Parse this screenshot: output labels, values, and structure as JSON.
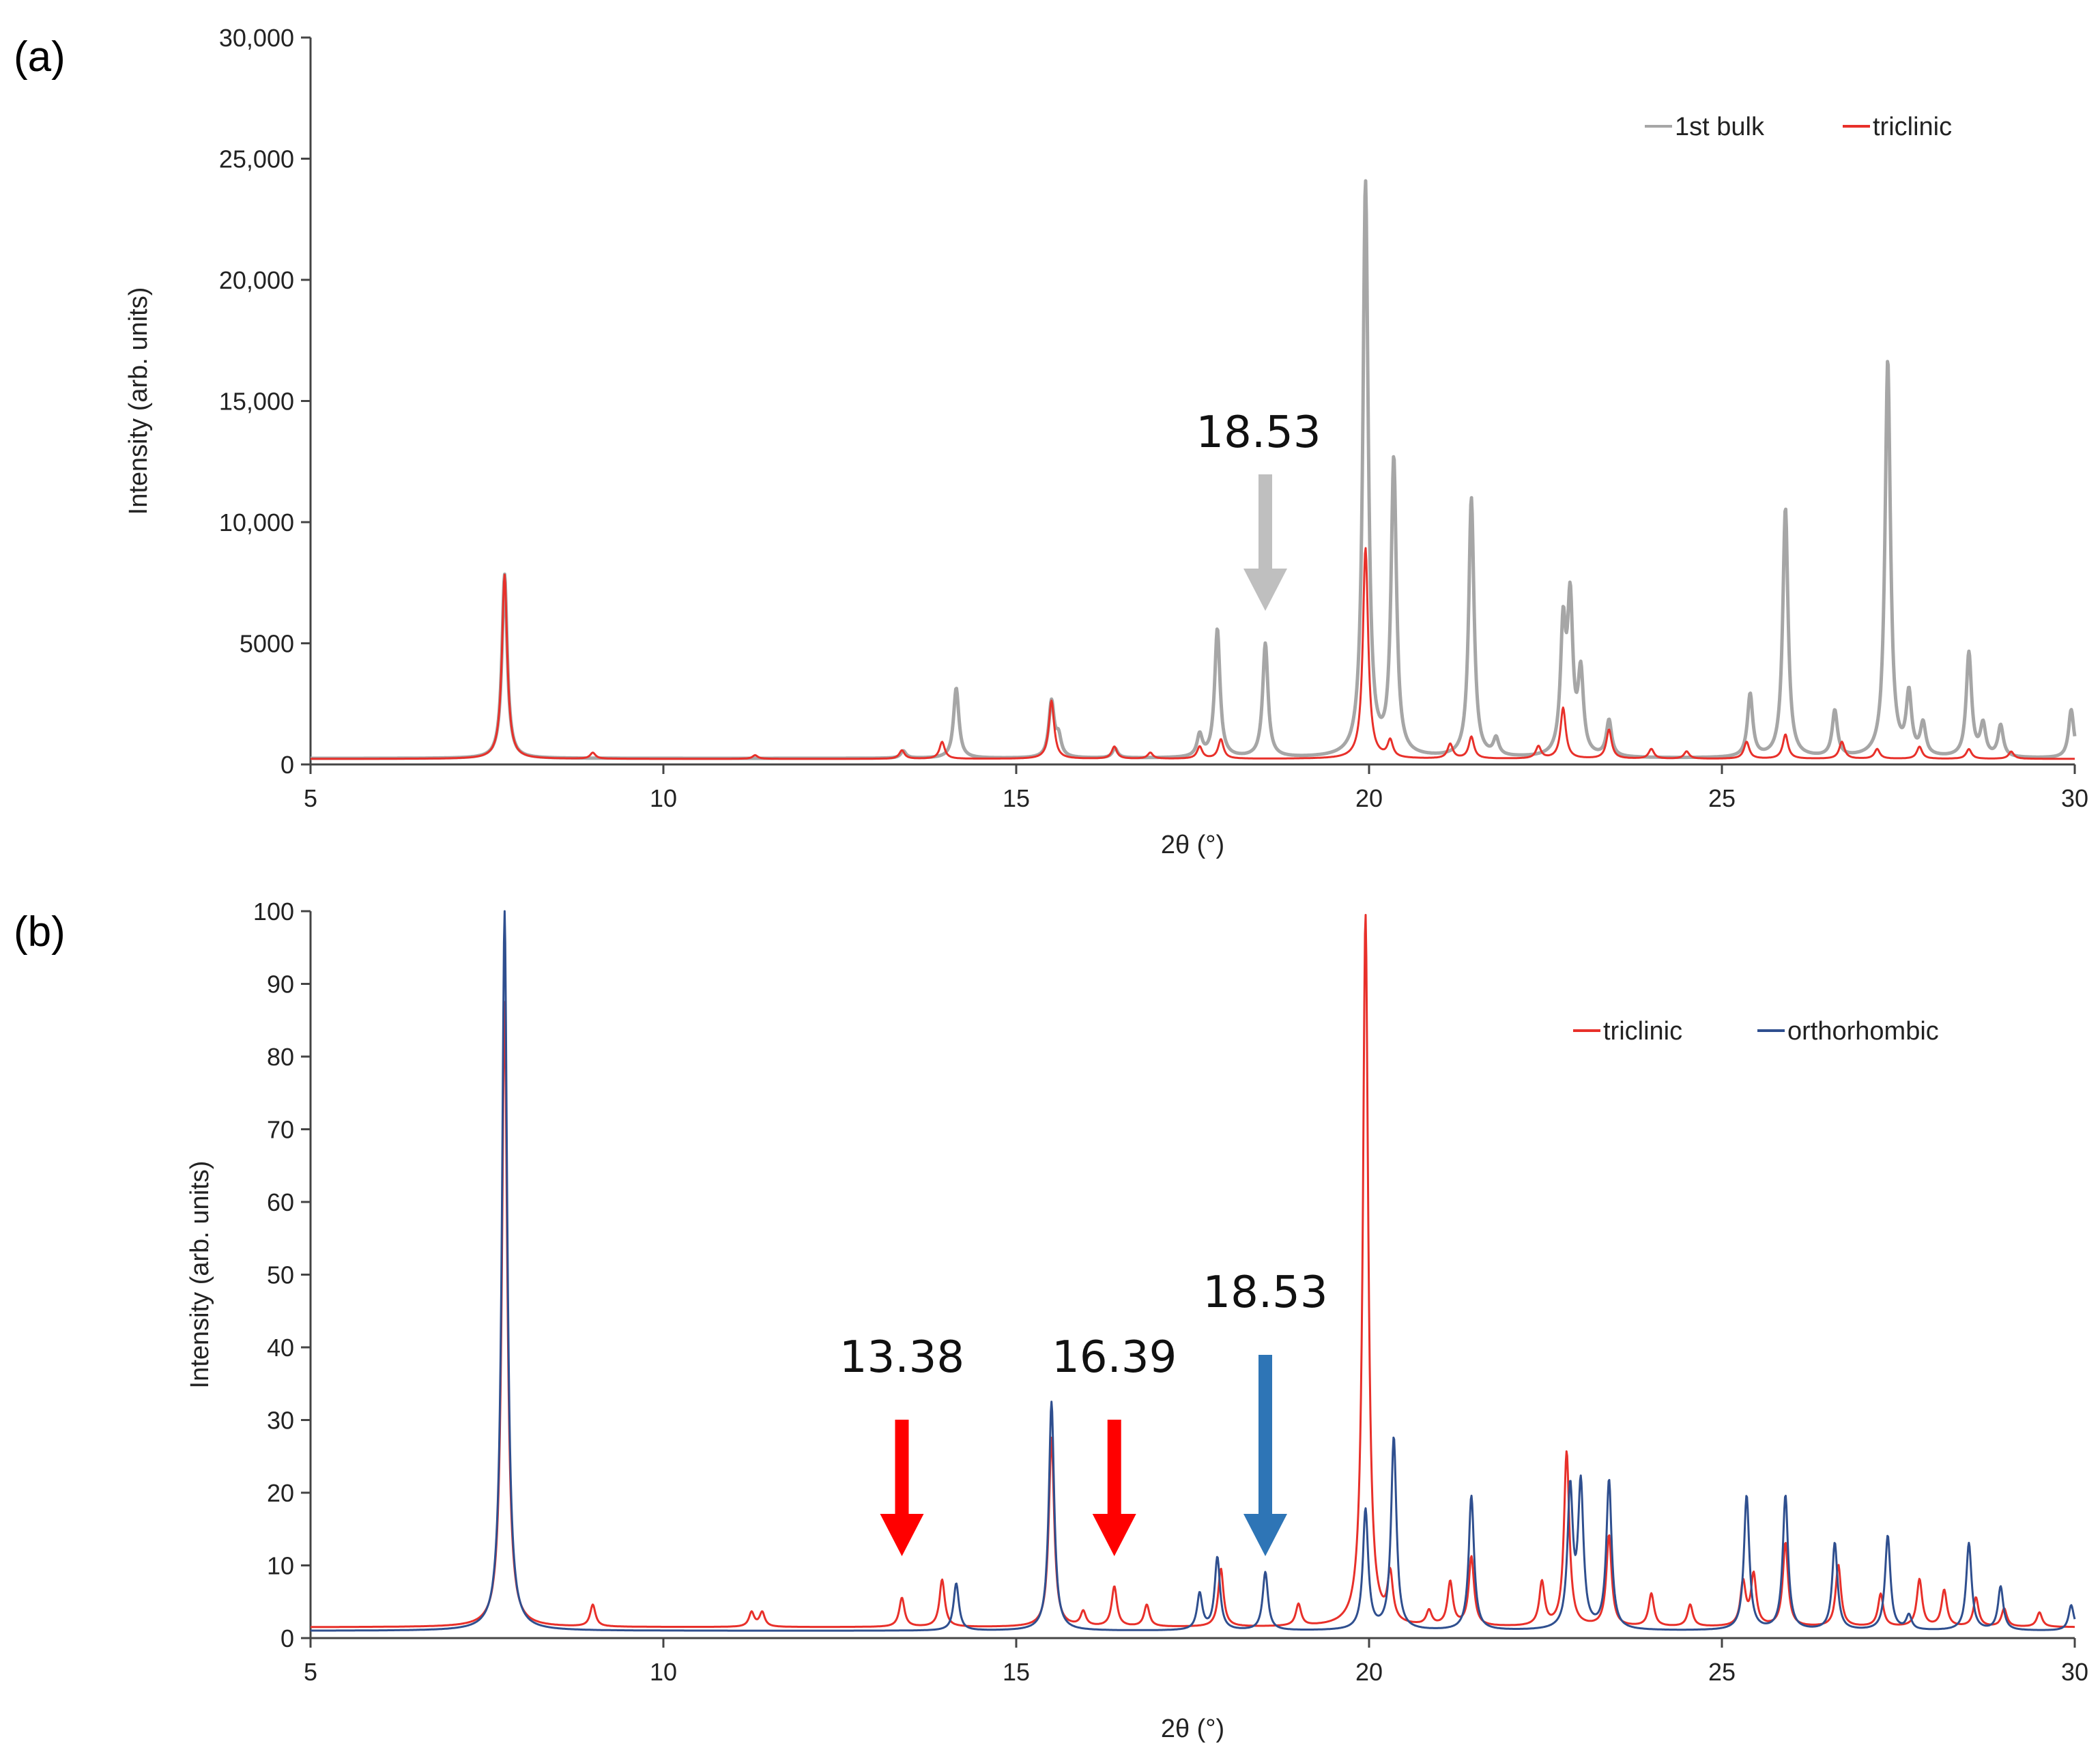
{
  "chart_data": [
    {
      "type": "line",
      "panel_label": "(a)",
      "xlabel": "2θ (°)",
      "ylabel": "Intensity (arb. units)",
      "xlim": [
        5,
        30
      ],
      "ylim": [
        0,
        30000
      ],
      "x_ticks": [
        5,
        10,
        15,
        20,
        25,
        30
      ],
      "x_tick_labels": [
        "5",
        "10",
        "15",
        "20",
        "25",
        "30"
      ],
      "y_ticks": [
        0,
        5000,
        10000,
        15000,
        20000,
        25000,
        30000
      ],
      "y_tick_labels": [
        "0",
        "5000",
        "10,000",
        "15,000",
        "20,000",
        "25,000",
        "30,000"
      ],
      "legend": [
        "1st bulk",
        "triclinic"
      ],
      "legend_position": "top-right",
      "series": [
        {
          "name": "1st bulk",
          "color": "#a6a6a6",
          "baseline": 250,
          "peaks": [
            [
              7.75,
              7600
            ],
            [
              13.4,
              300
            ],
            [
              14.15,
              2900
            ],
            [
              15.5,
              2300
            ],
            [
              15.6,
              800
            ],
            [
              16.4,
              400
            ],
            [
              17.6,
              900
            ],
            [
              17.85,
              5300
            ],
            [
              18.53,
              4700
            ],
            [
              19.95,
              23700
            ],
            [
              20.35,
              12200
            ],
            [
              21.45,
              10700
            ],
            [
              21.8,
              700
            ],
            [
              22.75,
              5100
            ],
            [
              22.85,
              6100
            ],
            [
              23.0,
              3300
            ],
            [
              23.4,
              1500
            ],
            [
              25.4,
              2600
            ],
            [
              25.9,
              10300
            ],
            [
              26.6,
              1900
            ],
            [
              27.35,
              16400
            ],
            [
              27.65,
              2500
            ],
            [
              27.85,
              1300
            ],
            [
              28.5,
              4300
            ],
            [
              28.7,
              1300
            ],
            [
              28.95,
              1300
            ],
            [
              29.95,
              2000
            ]
          ]
        },
        {
          "name": "triclinic",
          "color": "#e8302a",
          "baseline": 230,
          "peaks": [
            [
              7.75,
              7600
            ],
            [
              9.0,
              250
            ],
            [
              11.3,
              150
            ],
            [
              13.38,
              350
            ],
            [
              13.95,
              700
            ],
            [
              15.5,
              2400
            ],
            [
              16.39,
              500
            ],
            [
              16.9,
              250
            ],
            [
              17.6,
              500
            ],
            [
              17.9,
              800
            ],
            [
              19.95,
              8700
            ],
            [
              20.3,
              700
            ],
            [
              21.15,
              600
            ],
            [
              21.45,
              900
            ],
            [
              22.4,
              500
            ],
            [
              22.75,
              2100
            ],
            [
              23.4,
              1200
            ],
            [
              24.0,
              400
            ],
            [
              24.5,
              300
            ],
            [
              25.35,
              700
            ],
            [
              25.9,
              1000
            ],
            [
              26.7,
              700
            ],
            [
              27.2,
              400
            ],
            [
              27.8,
              500
            ],
            [
              28.5,
              400
            ],
            [
              29.1,
              300
            ]
          ]
        }
      ],
      "annotations": [
        {
          "text": "18.53",
          "x": 18.53,
          "arrow_color": "#bfbfbf"
        }
      ]
    },
    {
      "type": "line",
      "panel_label": "(b)",
      "xlabel": "2θ (°)",
      "ylabel": "Intensity (arb. units)",
      "xlim": [
        5,
        30
      ],
      "ylim": [
        0,
        100
      ],
      "x_ticks": [
        5,
        10,
        15,
        20,
        25,
        30
      ],
      "x_tick_labels": [
        "5",
        "10",
        "15",
        "20",
        "25",
        "30"
      ],
      "y_ticks": [
        0,
        10,
        20,
        30,
        40,
        50,
        60,
        70,
        80,
        90,
        100
      ],
      "y_tick_labels": [
        "0",
        "10",
        "20",
        "30",
        "40",
        "50",
        "60",
        "70",
        "80",
        "90",
        "100"
      ],
      "legend": [
        "triclinic",
        "orthorhombic"
      ],
      "legend_position": "top-right",
      "series": [
        {
          "name": "triclinic",
          "color": "#e8302a",
          "baseline": 1.5,
          "peaks": [
            [
              7.75,
              86
            ],
            [
              9.0,
              3
            ],
            [
              11.25,
              2
            ],
            [
              11.4,
              2
            ],
            [
              13.38,
              4
            ],
            [
              13.95,
              6.5
            ],
            [
              15.5,
              26
            ],
            [
              15.95,
              2
            ],
            [
              16.39,
              5.5
            ],
            [
              16.85,
              3
            ],
            [
              17.9,
              8
            ],
            [
              19.0,
              3
            ],
            [
              19.95,
              98
            ],
            [
              20.3,
              6.5
            ],
            [
              20.85,
              2
            ],
            [
              21.15,
              6
            ],
            [
              21.45,
              9.5
            ],
            [
              22.45,
              6
            ],
            [
              22.8,
              24
            ],
            [
              23.4,
              12.5
            ],
            [
              24.0,
              4.5
            ],
            [
              24.55,
              3
            ],
            [
              25.3,
              6
            ],
            [
              25.45,
              7
            ],
            [
              25.9,
              11.5
            ],
            [
              26.65,
              8.5
            ],
            [
              27.25,
              4.5
            ],
            [
              27.8,
              6.5
            ],
            [
              28.15,
              5
            ],
            [
              28.6,
              4
            ],
            [
              29.0,
              2.5
            ],
            [
              29.5,
              2
            ]
          ]
        },
        {
          "name": "orthorhombic",
          "color": "#2f4f8f",
          "baseline": 1.0,
          "peaks": [
            [
              7.75,
              99
            ],
            [
              14.15,
              6.5
            ],
            [
              15.5,
              31.5
            ],
            [
              17.6,
              5
            ],
            [
              17.85,
              10
            ],
            [
              18.53,
              8
            ],
            [
              19.95,
              16.5
            ],
            [
              20.35,
              26.5
            ],
            [
              21.45,
              18.5
            ],
            [
              22.85,
              19
            ],
            [
              23.0,
              19.5
            ],
            [
              23.4,
              20.5
            ],
            [
              25.35,
              18.5
            ],
            [
              25.9,
              18.5
            ],
            [
              26.6,
              12
            ],
            [
              27.35,
              13
            ],
            [
              27.65,
              2
            ],
            [
              28.5,
              12
            ],
            [
              28.95,
              6
            ],
            [
              29.95,
              3.5
            ]
          ]
        }
      ],
      "annotations": [
        {
          "text": "13.38",
          "x": 13.38,
          "arrow_color": "#ff0000"
        },
        {
          "text": "16.39",
          "x": 16.39,
          "arrow_color": "#ff0000"
        },
        {
          "text": "18.53",
          "x": 18.53,
          "arrow_color": "#2e75b6"
        }
      ]
    }
  ]
}
